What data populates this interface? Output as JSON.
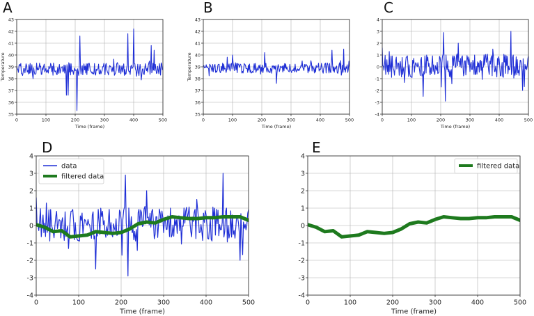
{
  "chart_data": [
    {
      "panel": "A",
      "type": "line",
      "xlabel": "Time (frame)",
      "ylabel": "Temperature",
      "xlim": [
        0,
        500
      ],
      "ylim": [
        35,
        43
      ],
      "xticks": [
        0,
        100,
        200,
        300,
        400,
        500
      ],
      "yticks": [
        35,
        36,
        37,
        38,
        39,
        40,
        41,
        42,
        43
      ],
      "grid": true,
      "legend": null,
      "series": [
        {
          "name": "data",
          "color": "#1f2fd6",
          "kind": "raw",
          "base": 38.8,
          "amp": 0.55,
          "spikes": [
            [
              170,
              36.6
            ],
            [
              175,
              36.6
            ],
            [
              205,
              35.3
            ],
            [
              215,
              41.6
            ],
            [
              380,
              41.8
            ],
            [
              400,
              42.2
            ],
            [
              460,
              40.8
            ],
            [
              470,
              40.4
            ]
          ]
        }
      ]
    },
    {
      "panel": "B",
      "type": "line",
      "xlabel": "Time (frame)",
      "ylabel": "Temperature",
      "xlim": [
        0,
        500
      ],
      "ylim": [
        35,
        43
      ],
      "xticks": [
        0,
        100,
        200,
        300,
        400,
        500
      ],
      "yticks": [
        35,
        36,
        37,
        38,
        39,
        40,
        41,
        42,
        43
      ],
      "grid": true,
      "legend": null,
      "series": [
        {
          "name": "data",
          "color": "#1f2fd6",
          "kind": "raw",
          "base": 38.9,
          "amp": 0.45,
          "spikes": [
            [
              100,
              40.0
            ],
            [
              210,
              40.2
            ],
            [
              250,
              37.6
            ],
            [
              440,
              40.4
            ],
            [
              480,
              40.5
            ]
          ]
        }
      ]
    },
    {
      "panel": "C",
      "type": "line",
      "xlabel": "Time (frame)",
      "ylabel": "",
      "xlim": [
        0,
        500
      ],
      "ylim": [
        -4,
        4
      ],
      "xticks": [
        0,
        100,
        200,
        300,
        400,
        500
      ],
      "yticks": [
        -4,
        -3,
        -2,
        -1,
        0,
        1,
        2,
        3,
        4
      ],
      "grid": true,
      "legend": null,
      "series": [
        {
          "name": "data",
          "color": "#1f2fd6",
          "kind": "raw",
          "base": 0.1,
          "amp": 1.0,
          "spikes": [
            [
              140,
              -2.5
            ],
            [
              210,
              2.9
            ],
            [
              215,
              -2.9
            ],
            [
              260,
              2.0
            ],
            [
              440,
              3.0
            ],
            [
              480,
              -2.0
            ]
          ]
        }
      ]
    },
    {
      "panel": "D",
      "type": "line",
      "xlabel": "Time (frame)",
      "ylabel": "",
      "xlim": [
        0,
        500
      ],
      "ylim": [
        -4,
        4
      ],
      "xticks": [
        0,
        100,
        200,
        300,
        400,
        500
      ],
      "yticks": [
        -4,
        -3,
        -2,
        -1,
        0,
        1,
        2,
        3,
        4
      ],
      "grid": true,
      "legend": "top-left",
      "series": [
        {
          "name": "data",
          "color": "#1f2fd6",
          "kind": "raw",
          "base": 0.1,
          "amp": 1.0,
          "spikes": [
            [
              140,
              -2.5
            ],
            [
              210,
              2.9
            ],
            [
              215,
              -2.9
            ],
            [
              260,
              2.0
            ],
            [
              440,
              3.0
            ],
            [
              480,
              -2.0
            ]
          ]
        },
        {
          "name": "filtered data",
          "color": "#1e7a1e",
          "kind": "smooth",
          "x": [
            0,
            20,
            40,
            60,
            80,
            100,
            120,
            140,
            160,
            180,
            200,
            220,
            240,
            260,
            280,
            300,
            320,
            340,
            360,
            380,
            400,
            420,
            440,
            460,
            480,
            500
          ],
          "y": [
            0.05,
            -0.1,
            -0.35,
            -0.3,
            -0.65,
            -0.6,
            -0.55,
            -0.35,
            -0.4,
            -0.45,
            -0.4,
            -0.2,
            0.1,
            0.2,
            0.15,
            0.35,
            0.5,
            0.45,
            0.4,
            0.4,
            0.45,
            0.45,
            0.5,
            0.5,
            0.5,
            0.3
          ]
        }
      ]
    },
    {
      "panel": "E",
      "type": "line",
      "xlabel": "Time (frame)",
      "ylabel": "",
      "xlim": [
        0,
        500
      ],
      "ylim": [
        -4,
        4
      ],
      "xticks": [
        0,
        100,
        200,
        300,
        400,
        500
      ],
      "yticks": [
        -4,
        -3,
        -2,
        -1,
        0,
        1,
        2,
        3,
        4
      ],
      "grid": true,
      "legend": "top-right",
      "series": [
        {
          "name": "filtered data",
          "color": "#1e7a1e",
          "kind": "smooth",
          "x": [
            0,
            20,
            40,
            60,
            80,
            100,
            120,
            140,
            160,
            180,
            200,
            220,
            240,
            260,
            280,
            300,
            320,
            340,
            360,
            380,
            400,
            420,
            440,
            460,
            480,
            500
          ],
          "y": [
            0.05,
            -0.1,
            -0.35,
            -0.3,
            -0.65,
            -0.6,
            -0.55,
            -0.35,
            -0.4,
            -0.45,
            -0.4,
            -0.2,
            0.1,
            0.2,
            0.15,
            0.35,
            0.5,
            0.45,
            0.4,
            0.4,
            0.45,
            0.45,
            0.5,
            0.5,
            0.5,
            0.3
          ]
        }
      ]
    }
  ]
}
